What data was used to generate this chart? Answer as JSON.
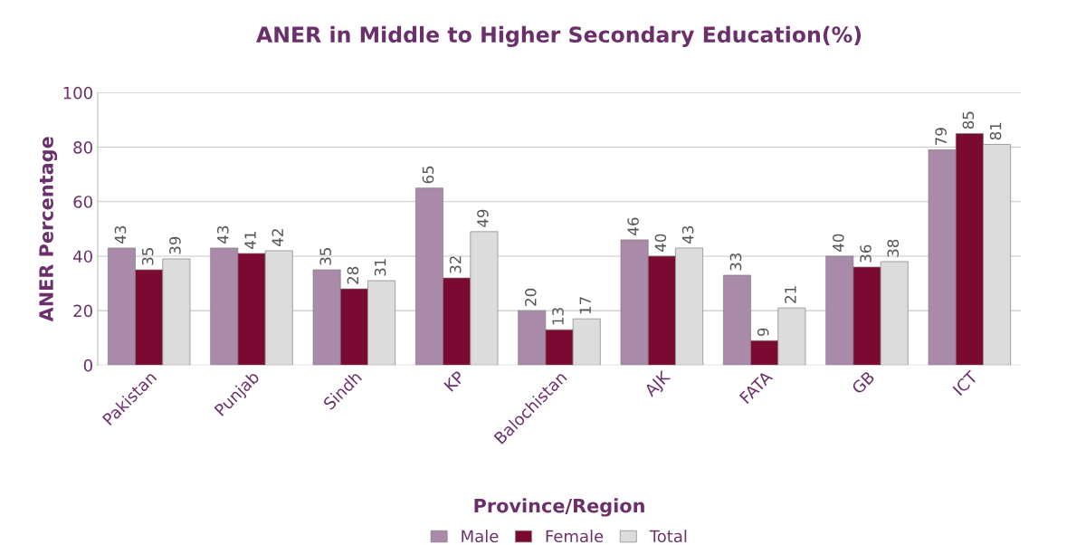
{
  "chart_data": {
    "type": "bar",
    "title": "ANER in Middle to Higher Secondary Education(%)",
    "xlabel": "Province/Region",
    "ylabel": "ANER Percentage",
    "categories": [
      "Pakistan",
      "Punjab",
      "Sindh",
      "KP",
      "Balochistan",
      "AJK",
      "FATA",
      "GB",
      "ICT"
    ],
    "series": [
      {
        "name": "Male",
        "color": "#a98aa8",
        "values": [
          43,
          43,
          35,
          65,
          20,
          46,
          33,
          40,
          79
        ]
      },
      {
        "name": "Female",
        "color": "#7b0a33",
        "values": [
          35,
          41,
          28,
          32,
          13,
          40,
          9,
          36,
          85
        ]
      },
      {
        "name": "Total",
        "color": "#dcdcdc",
        "values": [
          39,
          42,
          31,
          49,
          17,
          43,
          21,
          38,
          81
        ]
      }
    ],
    "ylim": [
      0,
      100
    ],
    "yticks": [
      0,
      20,
      40,
      60,
      80,
      100
    ],
    "grid": "y",
    "legend": "bottom",
    "data_labels": true
  }
}
